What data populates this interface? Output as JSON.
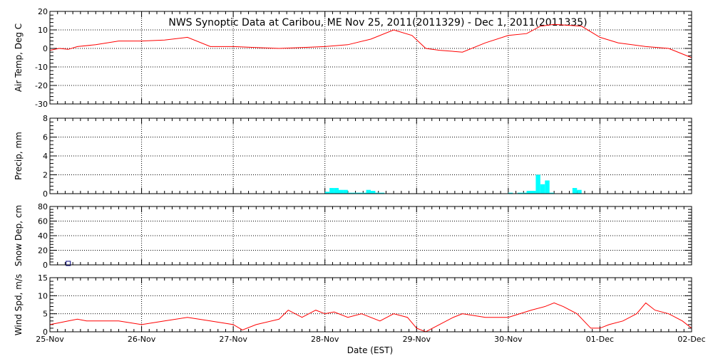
{
  "title": "NWS Synoptic Data at Caribou, ME   Nov 25, 2011(2011329) - Dec  1, 2011(2011335)",
  "xlabel": "Date (EST)",
  "x_tick_labels": [
    "25-Nov",
    "26-Nov",
    "27-Nov",
    "28-Nov",
    "29-Nov",
    "30-Nov",
    "01-Dec",
    "02-Dec"
  ],
  "chart_data": [
    {
      "type": "line",
      "ylabel": "Air Temp, Deg C",
      "ylim": [
        -30,
        20
      ],
      "yticks": [
        -30,
        -20,
        -10,
        0,
        10,
        20
      ],
      "x_unit": "days since 25-Nov 00:00",
      "color": "#ff0000",
      "grid": true,
      "x": [
        0,
        0.1,
        0.2,
        0.3,
        0.5,
        0.75,
        1.0,
        1.25,
        1.5,
        1.75,
        2.0,
        2.25,
        2.5,
        2.75,
        3.0,
        3.25,
        3.5,
        3.75,
        3.95,
        4.1,
        4.25,
        4.5,
        4.75,
        5.0,
        5.2,
        5.35,
        5.5,
        5.8,
        6.0,
        6.2,
        6.5,
        6.75,
        7.0
      ],
      "y": [
        -1,
        0,
        -0.5,
        1,
        2,
        4,
        4,
        4.5,
        6,
        1,
        1,
        0.5,
        0,
        0.5,
        1,
        2,
        5,
        10,
        7,
        0,
        -1,
        -2,
        3,
        7,
        8,
        12,
        13,
        12,
        6,
        3,
        1,
        0,
        -5
      ]
    },
    {
      "type": "bar",
      "ylabel": "Precip, mm",
      "ylim": [
        0,
        8
      ],
      "yticks": [
        0,
        2,
        4,
        6,
        8
      ],
      "color": "#00ffff",
      "grid": true,
      "x": [
        3.0,
        3.05,
        3.1,
        3.15,
        3.2,
        3.25,
        3.3,
        3.35,
        3.4,
        3.45,
        3.5,
        3.55,
        3.6,
        5.0,
        5.1,
        5.15,
        5.2,
        5.25,
        5.3,
        5.35,
        5.4,
        5.45,
        5.7,
        5.75
      ],
      "values": [
        0.2,
        0.6,
        0.6,
        0.4,
        0.4,
        0.1,
        0.1,
        0.1,
        0.1,
        0.4,
        0.3,
        0.1,
        0.1,
        0.1,
        0.1,
        0.1,
        0.3,
        0.3,
        2.0,
        1.0,
        1.4,
        0.1,
        0.6,
        0.4
      ]
    },
    {
      "type": "scatter",
      "ylabel": "Snow Dep, cm",
      "ylim": [
        0,
        80
      ],
      "yticks": [
        0,
        20,
        40,
        60,
        80
      ],
      "color": "#000080",
      "grid": true,
      "x": [
        0.2
      ],
      "y": [
        2
      ]
    },
    {
      "type": "line",
      "ylabel": "Wind Spd, m/s",
      "ylim": [
        0,
        15
      ],
      "yticks": [
        0,
        5,
        10,
        15
      ],
      "color": "#ff0000",
      "grid": true,
      "x": [
        0,
        0.1,
        0.2,
        0.3,
        0.4,
        0.5,
        0.75,
        1.0,
        1.25,
        1.5,
        1.75,
        2.0,
        2.1,
        2.25,
        2.5,
        2.6,
        2.75,
        2.9,
        3.0,
        3.1,
        3.25,
        3.4,
        3.6,
        3.75,
        3.9,
        4.0,
        4.1,
        4.25,
        4.4,
        4.5,
        4.75,
        5.0,
        5.25,
        5.4,
        5.5,
        5.6,
        5.75,
        5.9,
        6.0,
        6.1,
        6.25,
        6.4,
        6.5,
        6.6,
        6.75,
        6.9,
        7.0
      ],
      "y": [
        2,
        2.5,
        3,
        3.5,
        3,
        3,
        3,
        2,
        3,
        4,
        3,
        2,
        0.5,
        2,
        3.5,
        6,
        4,
        6,
        5,
        5.5,
        4,
        5,
        3,
        5,
        4,
        1,
        0,
        2,
        4,
        5,
        4,
        4,
        6,
        7,
        8,
        7,
        5,
        1,
        1,
        2,
        3,
        5,
        8,
        6,
        5,
        3,
        1
      ]
    }
  ]
}
